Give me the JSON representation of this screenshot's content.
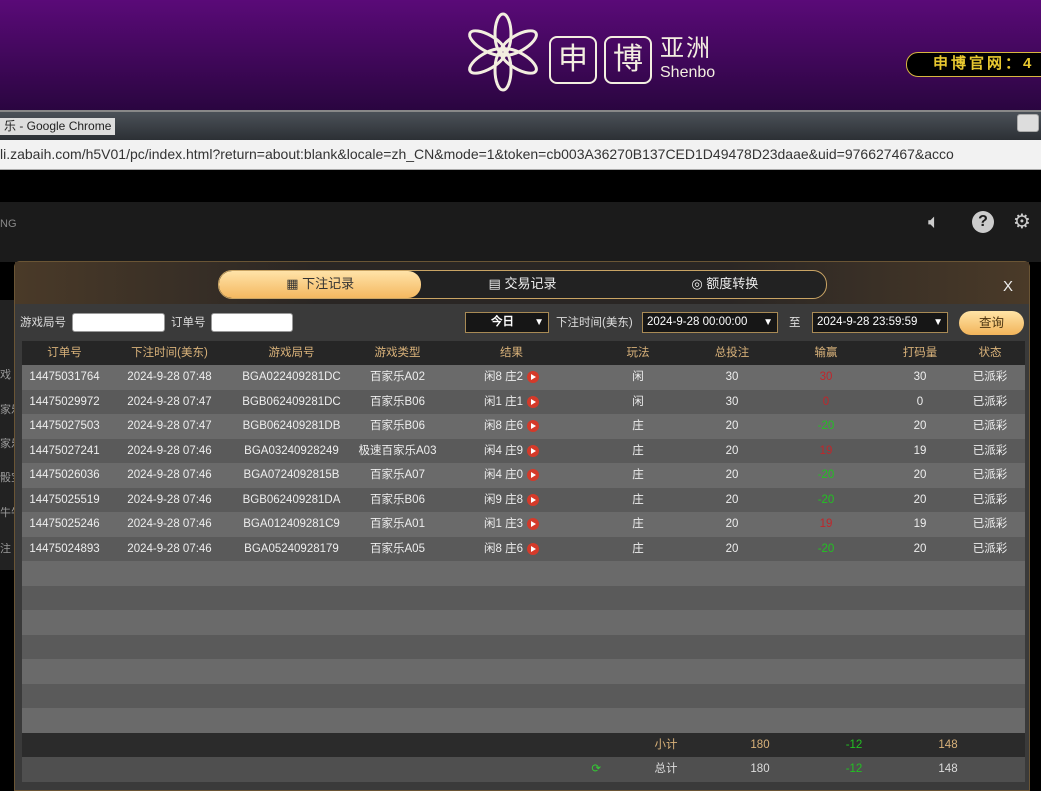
{
  "banner": {
    "logo_cn": "亚洲",
    "logo_en": "Shenbo",
    "logo_box1": "申",
    "logo_box2": "博",
    "official": "申博官网：4"
  },
  "browser": {
    "title": "乐 - Google Chrome",
    "url": "li.zabaih.com/h5V01/pc/index.html?return=about:blank&locale=zh_CN&mode=1&token=cb003A36270B137CED1D49478D23daae&uid=976627467&acco"
  },
  "game": {
    "brand_fragment": "NG",
    "side_fragments": [
      "戏",
      "家乐",
      "家乐",
      "骰宝",
      "牛牛",
      "注"
    ]
  },
  "modal": {
    "tabs": [
      {
        "label": "下注记录",
        "icon": "calendar-icon"
      },
      {
        "label": "交易记录",
        "icon": "clipboard-icon"
      },
      {
        "label": "额度转换",
        "icon": "coins-icon"
      }
    ],
    "close": "X",
    "filters": {
      "game_round_label": "游戏局号",
      "game_round_value": "",
      "order_label": "订单号",
      "order_value": "",
      "period": "今日",
      "time_label": "下注时间(美东)",
      "from": "2024-9-28 00:00:00",
      "to_label": "至",
      "to": "2024-9-28 23:59:59",
      "query": "查询"
    },
    "columns": [
      "订单号",
      "下注时间(美东)",
      "游戏局号",
      "游戏类型",
      "结果",
      "玩法",
      "总投注",
      "输赢",
      "打码量",
      "状态"
    ],
    "rows": [
      [
        "14475031764",
        "2024-9-28 07:48",
        "BGA022409281DC",
        "百家乐A02",
        "闲8 庄2",
        "闲",
        "30",
        "30",
        "30",
        "已派彩"
      ],
      [
        "14475029972",
        "2024-9-28 07:47",
        "BGB062409281DC",
        "百家乐B06",
        "闲1 庄1",
        "闲",
        "30",
        "0",
        "0",
        "已派彩"
      ],
      [
        "14475027503",
        "2024-9-28 07:47",
        "BGB062409281DB",
        "百家乐B06",
        "闲8 庄6",
        "庄",
        "20",
        "-20",
        "20",
        "已派彩"
      ],
      [
        "14475027241",
        "2024-9-28 07:46",
        "BGA03240928249",
        "极速百家乐A03",
        "闲4 庄9",
        "庄",
        "20",
        "19",
        "19",
        "已派彩"
      ],
      [
        "14475026036",
        "2024-9-28 07:46",
        "BGA0724092815B",
        "百家乐A07",
        "闲4 庄0",
        "庄",
        "20",
        "-20",
        "20",
        "已派彩"
      ],
      [
        "14475025519",
        "2024-9-28 07:46",
        "BGB062409281DA",
        "百家乐B06",
        "闲9 庄8",
        "庄",
        "20",
        "-20",
        "20",
        "已派彩"
      ],
      [
        "14475025246",
        "2024-9-28 07:46",
        "BGA012409281C9",
        "百家乐A01",
        "闲1 庄3",
        "庄",
        "20",
        "19",
        "19",
        "已派彩"
      ],
      [
        "14475024893",
        "2024-9-28 07:46",
        "BGA05240928179",
        "百家乐A05",
        "闲8 庄6",
        "庄",
        "20",
        "-20",
        "20",
        "已派彩"
      ]
    ],
    "subtotal": {
      "label": "小计",
      "bet": "180",
      "win": "-12",
      "code": "148"
    },
    "total": {
      "label": "总计",
      "bet": "180",
      "win": "-12",
      "code": "148"
    }
  },
  "colors": {
    "win": "#c0262b",
    "loss": "#22c122",
    "accent": "#f4b860"
  }
}
